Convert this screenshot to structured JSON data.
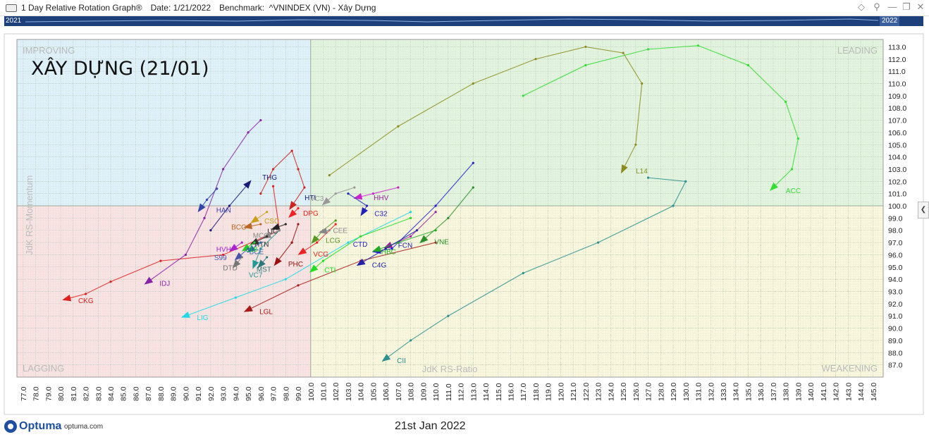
{
  "window": {
    "app_title": "1 Day Relative Rotation Graph®",
    "date_label": "Date: 1/21/2022",
    "benchmark_label": "Benchmark:  ^VNINDEX (VN) - Xây Dựng"
  },
  "timeline": {
    "start_label": "2021",
    "end_label": "2022"
  },
  "footer": {
    "brand": "Optuma",
    "site": "optuma.com",
    "date": "21st Jan 2022"
  },
  "colors": {
    "timeline": "#1d3f7a",
    "improving": "#dff2fb",
    "leading": "#e3f4df",
    "lagging": "#fbe3e3",
    "weakening": "#fbf8de"
  },
  "chart_data": {
    "type": "scatter",
    "title": "XÂY DỰNG (21/01)",
    "xlabel": "JdK RS-Ratio",
    "ylabel": "JdK RS-Momentum",
    "xlim": [
      76.5,
      145.8
    ],
    "ylim": [
      86.0,
      113.6
    ],
    "center": [
      100,
      100
    ],
    "quadrants": {
      "improving": "IMPROVING",
      "leading": "LEADING",
      "lagging": "LAGGING",
      "weakening": "WEAKENING"
    },
    "x_ticks": [
      "77.0",
      "78.0",
      "79.0",
      "80.0",
      "81.0",
      "82.0",
      "83.0",
      "84.0",
      "85.0",
      "86.0",
      "87.0",
      "88.0",
      "89.0",
      "90.0",
      "91.0",
      "92.0",
      "93.0",
      "94.0",
      "95.0",
      "96.0",
      "97.0",
      "98.0",
      "99.0",
      "100.0",
      "101.0",
      "102.0",
      "103.0",
      "104.0",
      "105.0",
      "106.0",
      "107.0",
      "108.0",
      "109.0",
      "110.0",
      "111.0",
      "112.0",
      "113.0",
      "114.0",
      "115.0",
      "116.0",
      "117.0",
      "118.0",
      "119.0",
      "120.0",
      "121.0",
      "122.0",
      "123.0",
      "124.0",
      "125.0",
      "126.0",
      "127.0",
      "128.0",
      "129.0",
      "130.0",
      "131.0",
      "132.0",
      "133.0",
      "134.0",
      "135.0",
      "136.0",
      "137.0",
      "138.0",
      "139.0",
      "140.0",
      "141.0",
      "142.0",
      "143.0",
      "144.0",
      "145.0"
    ],
    "y_ticks": [
      "87.0",
      "88.0",
      "89.0",
      "90.0",
      "91.0",
      "92.0",
      "93.0",
      "94.0",
      "95.0",
      "96.0",
      "97.0",
      "98.0",
      "99.0",
      "100.0",
      "101.0",
      "102.0",
      "103.0",
      "104.0",
      "105.0",
      "106.0",
      "107.0",
      "108.0",
      "109.0",
      "110.0",
      "111.0",
      "112.0",
      "113.0"
    ],
    "series": [
      {
        "name": "ACC",
        "color": "#33dd33",
        "points": [
          [
            117,
            109
          ],
          [
            122,
            111.5
          ],
          [
            127,
            112.8
          ],
          [
            131,
            113.1
          ],
          [
            135,
            111.5
          ],
          [
            138,
            108.5
          ],
          [
            139,
            105.5
          ],
          [
            138.5,
            103
          ],
          [
            137,
            101.5
          ]
        ]
      },
      {
        "name": "L14",
        "color": "#8c8c1e",
        "points": [
          [
            101.5,
            102.5
          ],
          [
            107,
            106.5
          ],
          [
            113,
            110
          ],
          [
            118,
            112
          ],
          [
            122,
            113
          ],
          [
            125,
            112.5
          ],
          [
            126.5,
            110
          ],
          [
            126,
            105
          ],
          [
            125,
            103
          ]
        ]
      },
      {
        "name": "CII",
        "color": "#2a8f8f",
        "points": [
          [
            127,
            102.3
          ],
          [
            130,
            102
          ],
          [
            129,
            100
          ],
          [
            123,
            97
          ],
          [
            117,
            94.5
          ],
          [
            111,
            91
          ],
          [
            108,
            89
          ],
          [
            106,
            87.5
          ]
        ]
      },
      {
        "name": "CKG",
        "color": "#e02020",
        "points": [
          [
            97,
            101.6
          ],
          [
            97.5,
            98
          ],
          [
            93,
            96
          ],
          [
            88,
            95.5
          ],
          [
            84,
            93.8
          ],
          [
            82,
            92.8
          ],
          [
            80.5,
            92.4
          ]
        ]
      },
      {
        "name": "IDJ",
        "color": "#8822aa",
        "points": [
          [
            96,
            107
          ],
          [
            95,
            106
          ],
          [
            93,
            103
          ],
          [
            91.5,
            99
          ],
          [
            90,
            96
          ],
          [
            87,
            93.8
          ]
        ]
      },
      {
        "name": "LIG",
        "color": "#22d8e8",
        "points": [
          [
            108,
            99.5
          ],
          [
            103,
            97
          ],
          [
            98,
            94
          ],
          [
            94,
            92.5
          ],
          [
            90,
            91
          ]
        ]
      },
      {
        "name": "LGL",
        "color": "#aa1a1a",
        "points": [
          [
            110,
            97
          ],
          [
            104,
            95.5
          ],
          [
            99,
            93.5
          ],
          [
            95,
            91.5
          ]
        ]
      },
      {
        "name": "HAN",
        "color": "#3344aa",
        "points": [
          [
            92.5,
            101.4
          ],
          [
            91.7,
            100.5
          ],
          [
            91.2,
            99.8
          ]
        ]
      },
      {
        "name": "THG",
        "color": "#1a1a7a",
        "points": [
          [
            92,
            98
          ],
          [
            93.5,
            100
          ],
          [
            95,
            101.8
          ]
        ]
      },
      {
        "name": "HTI",
        "color": "#cc2222",
        "points": [
          [
            96,
            101
          ],
          [
            97,
            103
          ],
          [
            98.5,
            104.5
          ],
          [
            99,
            103
          ],
          [
            99.5,
            101.5
          ],
          [
            98.5,
            100
          ]
        ]
      },
      {
        "name": "HHV",
        "color": "#cc22cc",
        "points": [
          [
            107,
            101.5
          ],
          [
            105,
            101
          ],
          [
            103.8,
            100.7
          ]
        ]
      },
      {
        "name": "C32",
        "color": "#2222bb",
        "points": [
          [
            103,
            101
          ],
          [
            104.5,
            100
          ],
          [
            104.2,
            99.5
          ]
        ]
      },
      {
        "name": "VC3",
        "color": "#999999",
        "points": [
          [
            103.5,
            101.5
          ],
          [
            102,
            101
          ],
          [
            101.2,
            100.3
          ]
        ]
      },
      {
        "name": "VNE",
        "color": "#2a8f2a",
        "points": [
          [
            113,
            101.5
          ],
          [
            111,
            99
          ],
          [
            109,
            97.2
          ]
        ]
      },
      {
        "name": "FCN",
        "color": "#992299",
        "points": [
          [
            110,
            99.5
          ],
          [
            108,
            97.5
          ],
          [
            106.2,
            96.7
          ]
        ]
      },
      {
        "name": "CTD",
        "color": "#2222cc",
        "points": [
          [
            113,
            103.5
          ],
          [
            110,
            100
          ],
          [
            106.5,
            96.5
          ],
          [
            105.3,
            96.3
          ]
        ]
      },
      {
        "name": "HBC",
        "color": "#22aa22",
        "points": [
          [
            110,
            98
          ],
          [
            107,
            97
          ],
          [
            105.3,
            96.4
          ]
        ]
      },
      {
        "name": "C4G",
        "color": "#2222aa",
        "points": [
          [
            108.5,
            98
          ],
          [
            106,
            96.5
          ],
          [
            104,
            95.3
          ]
        ]
      },
      {
        "name": "CTI",
        "color": "#22dd22",
        "points": [
          [
            108,
            99
          ],
          [
            104,
            97.5
          ],
          [
            101,
            95.5
          ],
          [
            100.2,
            94.8
          ]
        ]
      },
      {
        "name": "VCG",
        "color": "#ee2222",
        "points": [
          [
            102,
            98.5
          ],
          [
            100.5,
            97
          ],
          [
            99.3,
            96.2
          ]
        ]
      },
      {
        "name": "PHC",
        "color": "#991111",
        "points": [
          [
            99,
            98.5
          ],
          [
            98.5,
            97
          ],
          [
            97.3,
            95.4
          ]
        ]
      },
      {
        "name": "VC7",
        "color": "#229999",
        "points": [
          [
            97.5,
            98
          ],
          [
            96,
            96.5
          ],
          [
            95.5,
            95.2
          ]
        ]
      },
      {
        "name": "LCG",
        "color": "#559922",
        "points": [
          [
            102,
            98.8
          ],
          [
            101,
            98
          ],
          [
            100.3,
            97.2
          ]
        ]
      },
      {
        "name": "DPG",
        "color": "#ee2222",
        "points": [
          [
            99,
            99.8
          ],
          [
            98.5,
            99.3
          ]
        ]
      },
      {
        "name": "CSC",
        "color": "#c8a018",
        "points": [
          [
            96.5,
            99.5
          ],
          [
            95.5,
            98.8
          ]
        ]
      },
      {
        "name": "BCG",
        "color": "#bb6622",
        "points": [
          [
            96,
            98.5
          ],
          [
            95,
            98.3
          ]
        ]
      },
      {
        "name": "IJC",
        "color": "#222222",
        "points": [
          [
            98,
            98.5
          ],
          [
            97.2,
            98.2
          ]
        ]
      },
      {
        "name": "MCG",
        "color": "#888888",
        "points": [
          [
            97.5,
            98
          ],
          [
            96.5,
            97.5
          ]
        ]
      },
      {
        "name": "HTN",
        "color": "#333333",
        "points": [
          [
            96.5,
            97.5
          ],
          [
            95.5,
            97
          ]
        ]
      },
      {
        "name": "BCE",
        "color": "#2266aa",
        "points": [
          [
            96,
            97
          ],
          [
            95.2,
            96.4
          ]
        ]
      },
      {
        "name": "HVH",
        "color": "#aa22cc",
        "points": [
          [
            94.5,
            97
          ],
          [
            93.8,
            96.5
          ]
        ]
      },
      {
        "name": "L18",
        "color": "#22cc22",
        "points": [
          [
            95.5,
            97
          ],
          [
            94.8,
            96.5
          ]
        ]
      },
      {
        "name": "S99",
        "color": "#4455aa",
        "points": [
          [
            95,
            96.5
          ],
          [
            94.2,
            95.8
          ]
        ]
      },
      {
        "name": "CEE",
        "color": "#888888",
        "points": [
          [
            101.5,
            98
          ],
          [
            101,
            97.9
          ]
        ]
      },
      {
        "name": "DTD",
        "color": "#777777",
        "points": [
          [
            94.5,
            95.8
          ],
          [
            94,
            95.2
          ]
        ]
      },
      {
        "name": "MST",
        "color": "#2a7a7a",
        "points": [
          [
            96.5,
            95.8
          ],
          [
            96,
            95.2
          ]
        ]
      }
    ],
    "labels": [
      {
        "text": "ACC",
        "color": "#33dd33"
      },
      {
        "text": "L14",
        "color": "#8c8c1e"
      },
      {
        "text": "CII",
        "color": "#2a8f8f"
      },
      {
        "text": "CKG",
        "color": "#e02020"
      },
      {
        "text": "IDJ",
        "color": "#8822aa"
      },
      {
        "text": "LIG",
        "color": "#22d8e8"
      },
      {
        "text": "LGL",
        "color": "#aa1a1a"
      },
      {
        "text": "HAN",
        "color": "#3344aa"
      },
      {
        "text": "THG",
        "color": "#1a1a7a"
      },
      {
        "text": "HTI",
        "color": "#1a1a7a"
      },
      {
        "text": "HHV",
        "color": "#992299"
      },
      {
        "text": "C32",
        "color": "#2222bb"
      },
      {
        "text": "VC3",
        "color": "#999999"
      },
      {
        "text": "VNE",
        "color": "#2a8f2a"
      },
      {
        "text": "FCN",
        "color": "#2222aa"
      },
      {
        "text": "CTD",
        "color": "#2222cc"
      },
      {
        "text": "HBC",
        "color": "#22aa22"
      },
      {
        "text": "C4G",
        "color": "#2222aa"
      },
      {
        "text": "CTI",
        "color": "#22dd22"
      },
      {
        "text": "VCG",
        "color": "#ee2222"
      },
      {
        "text": "PHC",
        "color": "#991111"
      },
      {
        "text": "VC7",
        "color": "#229999"
      },
      {
        "text": "LCG",
        "color": "#559922"
      },
      {
        "text": "DPG",
        "color": "#ee2222"
      },
      {
        "text": "CSC",
        "color": "#c8a018"
      },
      {
        "text": "BCG",
        "color": "#bb6622"
      },
      {
        "text": "IJC",
        "color": "#222222"
      },
      {
        "text": "MCG",
        "color": "#888888"
      },
      {
        "text": "HTN",
        "color": "#333333"
      },
      {
        "text": "BCE",
        "color": "#2266aa"
      },
      {
        "text": "HVH",
        "color": "#aa22cc"
      },
      {
        "text": "L18",
        "color": "#22cc22"
      },
      {
        "text": "S99",
        "color": "#4455aa"
      },
      {
        "text": "CEE",
        "color": "#888888"
      },
      {
        "text": "DTD",
        "color": "#777777"
      },
      {
        "text": "MST",
        "color": "#2a7a7a"
      }
    ]
  }
}
